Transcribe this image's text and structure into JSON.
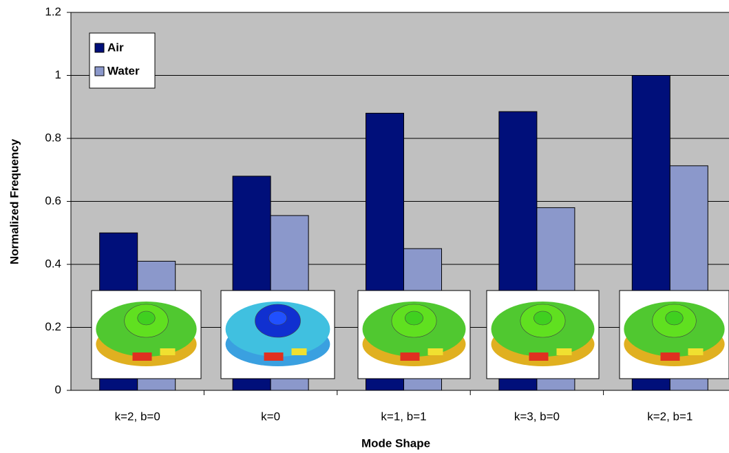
{
  "chart_data": {
    "type": "bar",
    "x_label": "Mode Shape",
    "y_label": "Normalized Frequency",
    "categories": [
      "k=2, b=0",
      "k=0",
      "k=1, b=1",
      "k=3, b=0",
      "k=2, b=1"
    ],
    "series": [
      {
        "name": "Air",
        "color": "#000f7a",
        "values": [
          0.5,
          0.68,
          0.88,
          0.885,
          1.0
        ]
      },
      {
        "name": "Water",
        "color": "#8b98cb",
        "values": [
          0.41,
          0.555,
          0.45,
          0.58,
          0.713
        ]
      }
    ],
    "ylim": [
      0,
      1.2
    ],
    "yticks": [
      0,
      0.2,
      0.4,
      0.6,
      0.8,
      1,
      1.2
    ],
    "grid": true,
    "plot_background": "#c0c0c0",
    "legend": "upper left"
  }
}
